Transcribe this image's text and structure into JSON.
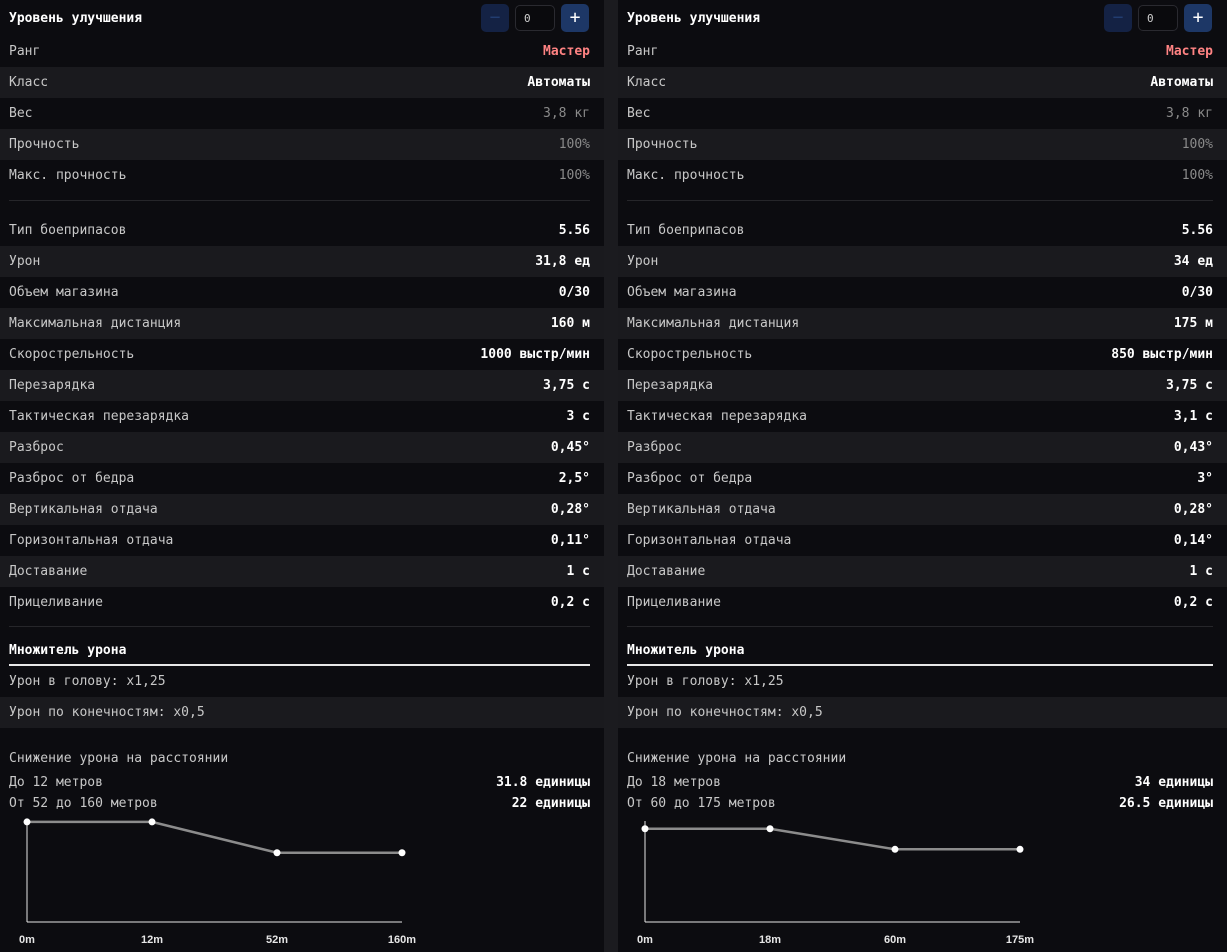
{
  "panels": [
    {
      "upgrade_label": "Уровень улучшения",
      "upgrade_value": "0",
      "minus_label": "−",
      "plus_label": "+",
      "basic": [
        {
          "label": "Ранг",
          "value": "Мастер",
          "style": "rank"
        },
        {
          "label": "Класс",
          "value": "Автоматы",
          "style": "bold"
        },
        {
          "label": "Вес",
          "value": "3,8 кг",
          "style": "dim"
        },
        {
          "label": "Прочность",
          "value": "100%",
          "style": "dim"
        },
        {
          "label": "Макс. прочность",
          "value": "100%",
          "style": "dim"
        }
      ],
      "stats": [
        {
          "label": "Тип боеприпасов",
          "value": "5.56"
        },
        {
          "label": "Урон",
          "value": "31,8 ед"
        },
        {
          "label": "Объем магазина",
          "value": "0/30"
        },
        {
          "label": "Максимальная дистанция",
          "value": "160 м"
        },
        {
          "label": "Скорострельность",
          "value": "1000 выстр/мин"
        },
        {
          "label": "Перезарядка",
          "value": "3,75 с"
        },
        {
          "label": "Тактическая перезарядка",
          "value": "3 с"
        },
        {
          "label": "Разброс",
          "value": "0,45°"
        },
        {
          "label": "Разброс от бедра",
          "value": "2,5°"
        },
        {
          "label": "Вертикальная отдача",
          "value": "0,28°"
        },
        {
          "label": "Горизонтальная отдача",
          "value": "0,11°"
        },
        {
          "label": "Доставание",
          "value": "1 с"
        },
        {
          "label": "Прицеливание",
          "value": "0,2 с"
        }
      ],
      "multiplier_title": "Множитель урона",
      "multipliers": [
        "Урон в голову: x1,25",
        "Урон по конечностям: x0,5"
      ],
      "falloff_title": "Снижение урона на расстоянии",
      "falloff": [
        {
          "label": "До 12 метров",
          "value": "31.8 единицы"
        },
        {
          "label": "От 52 до 160 метров",
          "value": "22 единицы"
        }
      ],
      "chart_data": {
        "type": "line",
        "x": [
          0,
          12,
          52,
          160
        ],
        "tick_labels": [
          "0m",
          "12m",
          "52m",
          "160m"
        ],
        "y": [
          31.8,
          31.8,
          22,
          22
        ],
        "ylim": [
          0,
          34
        ]
      }
    },
    {
      "upgrade_label": "Уровень улучшения",
      "upgrade_value": "0",
      "minus_label": "−",
      "plus_label": "+",
      "basic": [
        {
          "label": "Ранг",
          "value": "Мастер",
          "style": "rank"
        },
        {
          "label": "Класс",
          "value": "Автоматы",
          "style": "bold"
        },
        {
          "label": "Вес",
          "value": "3,8 кг",
          "style": "dim"
        },
        {
          "label": "Прочность",
          "value": "100%",
          "style": "dim"
        },
        {
          "label": "Макс. прочность",
          "value": "100%",
          "style": "dim"
        }
      ],
      "stats": [
        {
          "label": "Тип боеприпасов",
          "value": "5.56"
        },
        {
          "label": "Урон",
          "value": "34 ед"
        },
        {
          "label": "Объем магазина",
          "value": "0/30"
        },
        {
          "label": "Максимальная дистанция",
          "value": "175 м"
        },
        {
          "label": "Скорострельность",
          "value": "850 выстр/мин"
        },
        {
          "label": "Перезарядка",
          "value": "3,75 с"
        },
        {
          "label": "Тактическая перезарядка",
          "value": "3,1 с"
        },
        {
          "label": "Разброс",
          "value": "0,43°"
        },
        {
          "label": "Разброс от бедра",
          "value": "3°"
        },
        {
          "label": "Вертикальная отдача",
          "value": "0,28°"
        },
        {
          "label": "Горизонтальная отдача",
          "value": "0,14°"
        },
        {
          "label": "Доставание",
          "value": "1 с"
        },
        {
          "label": "Прицеливание",
          "value": "0,2 с"
        }
      ],
      "multiplier_title": "Множитель урона",
      "multipliers": [
        "Урон в голову: x1,25",
        "Урон по конечностям: x0,5"
      ],
      "falloff_title": "Снижение урона на расстоянии",
      "falloff": [
        {
          "label": "До 18 метров",
          "value": "34 единицы"
        },
        {
          "label": "От 60 до 175 метров",
          "value": "26.5 единицы"
        }
      ],
      "chart_data": {
        "type": "line",
        "x": [
          0,
          18,
          60,
          175
        ],
        "tick_labels": [
          "0m",
          "18m",
          "60m",
          "175m"
        ],
        "y": [
          34,
          34,
          26.5,
          26.5
        ],
        "ylim": [
          0,
          39
        ]
      }
    }
  ]
}
